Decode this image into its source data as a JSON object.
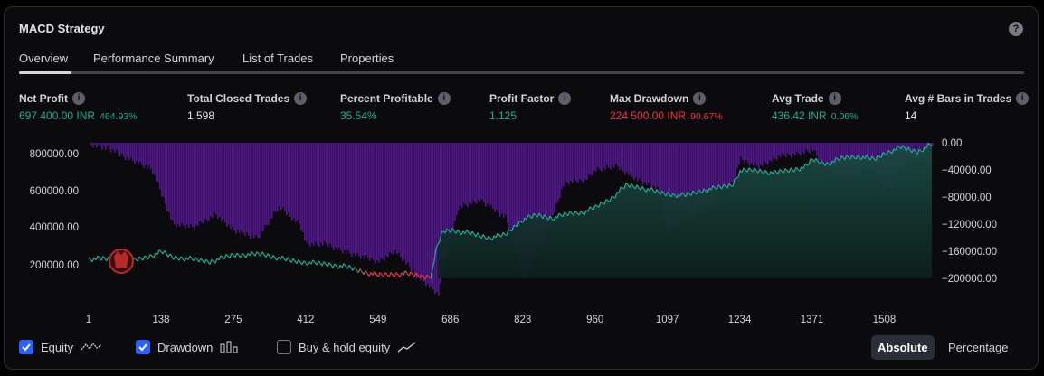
{
  "header": {
    "title": "MACD Strategy",
    "help_glyph": "?"
  },
  "tabs": [
    {
      "label": "Overview",
      "active": true
    },
    {
      "label": "Performance Summary",
      "active": false
    },
    {
      "label": "List of Trades",
      "active": false
    },
    {
      "label": "Properties",
      "active": false
    }
  ],
  "stats": [
    {
      "label": "Net Profit",
      "value": "697 400.00 INR",
      "sub": "464.93%",
      "color": "green"
    },
    {
      "label": "Total Closed Trades",
      "value": "1 598",
      "sub": "",
      "color": "white"
    },
    {
      "label": "Percent Profitable",
      "value": "35.54%",
      "sub": "",
      "color": "green"
    },
    {
      "label": "Profit Factor",
      "value": "1.125",
      "sub": "",
      "color": "green"
    },
    {
      "label": "Max Drawdown",
      "value": "224 500.00 INR",
      "sub": "90.67%",
      "color": "red"
    },
    {
      "label": "Avg Trade",
      "value": "436.42 INR",
      "sub": "0.06%",
      "color": "green"
    },
    {
      "label": "Avg # Bars in Trades",
      "value": "14",
      "sub": "",
      "color": "white"
    }
  ],
  "chart_data": {
    "type": "area",
    "x_ticks": [
      "1",
      "138",
      "275",
      "412",
      "549",
      "686",
      "823",
      "960",
      "1097",
      "1234",
      "1371",
      "1508"
    ],
    "left_axis_ticks": [
      "800000.00",
      "600000.00",
      "400000.00",
      "200000.00"
    ],
    "right_axis_ticks": [
      "0.00",
      "−40000.00",
      "−80000.00",
      "−120000.00",
      "−160000.00",
      "−200000.00"
    ],
    "xlim": [
      1,
      1598
    ],
    "equity": {
      "name": "Equity",
      "x": [
        1,
        40,
        80,
        110,
        140,
        160,
        190,
        230,
        275,
        330,
        380,
        412,
        450,
        490,
        520,
        549,
        570,
        600,
        625,
        640,
        650,
        660,
        672,
        690,
        720,
        760,
        790,
        823,
        850,
        880,
        910,
        940,
        960,
        990,
        1020,
        1050,
        1080,
        1097,
        1130,
        1160,
        1190,
        1220,
        1234,
        1260,
        1300,
        1330,
        1360,
        1371,
        1400,
        1430,
        1460,
        1490,
        1508,
        1540,
        1570,
        1598
      ],
      "y": [
        130000,
        128000,
        115000,
        140000,
        175000,
        140000,
        130000,
        110000,
        155000,
        160000,
        120000,
        105000,
        95000,
        75000,
        45000,
        20000,
        25000,
        30000,
        20000,
        10000,
        20000,
        200000,
        310000,
        320000,
        300000,
        270000,
        290000,
        390000,
        420000,
        400000,
        430000,
        440000,
        470000,
        530000,
        620000,
        600000,
        570000,
        560000,
        550000,
        580000,
        600000,
        620000,
        710000,
        720000,
        700000,
        720000,
        740000,
        790000,
        760000,
        800000,
        810000,
        790000,
        830000,
        870000,
        840000,
        890000
      ]
    },
    "drawdown": {
      "name": "Drawdown",
      "x": [
        1,
        40,
        80,
        120,
        160,
        200,
        240,
        275,
        320,
        360,
        400,
        412,
        450,
        500,
        549,
        580,
        620,
        650,
        662,
        700,
        740,
        790,
        823,
        860,
        900,
        940,
        960,
        1000,
        1040,
        1080,
        1097,
        1140,
        1180,
        1220,
        1234,
        1270,
        1310,
        1350,
        1371,
        1400,
        1440,
        1480,
        1508,
        1540,
        1570,
        1598
      ],
      "y": [
        -2000,
        -10000,
        -25000,
        -40000,
        -120000,
        -125000,
        -105000,
        -130000,
        -140000,
        -95000,
        -120000,
        -150000,
        -150000,
        -165000,
        -175000,
        -160000,
        -195000,
        -215000,
        -224500,
        -95000,
        -85000,
        -110000,
        -205000,
        -150000,
        -60000,
        -55000,
        -40000,
        -35000,
        -55000,
        -70000,
        -135000,
        -110000,
        -90000,
        -60000,
        -25000,
        -35000,
        -20000,
        -15000,
        -10000,
        -45000,
        -60000,
        -35000,
        -80000,
        -40000,
        -15000,
        -5000
      ]
    }
  },
  "legend": {
    "equity_label": "Equity",
    "drawdown_label": "Drawdown",
    "buyhold_label": "Buy & hold equity",
    "equity_checked": true,
    "drawdown_checked": true,
    "buyhold_checked": false
  },
  "toggle": {
    "absolute_label": "Absolute",
    "percentage_label": "Percentage",
    "active": "absolute"
  },
  "colors": {
    "equity_line": "#22ab94",
    "equity_loss": "#f23645",
    "drawdown_fill": "#5b1a9c",
    "accent": "#2962ff"
  }
}
